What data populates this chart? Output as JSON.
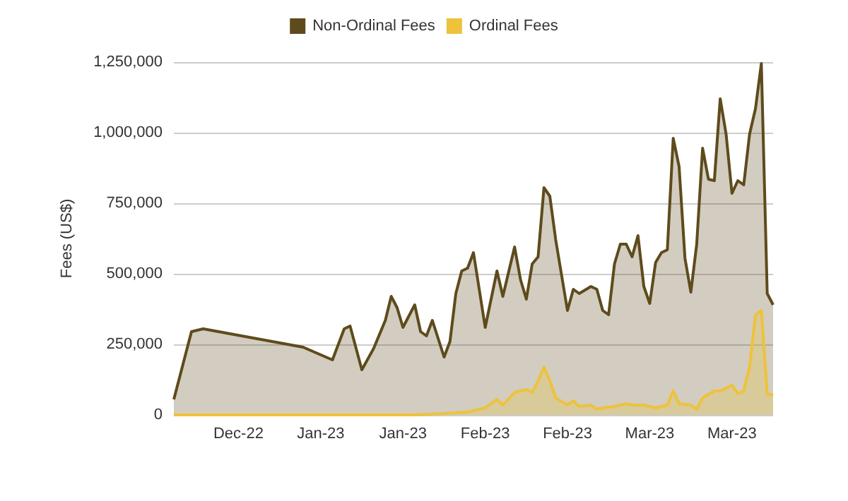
{
  "chart_data": {
    "type": "area",
    "ylabel": "Fees (US$)",
    "legend": "top",
    "grid": "y",
    "marker": "none",
    "ylim": [
      0,
      1250000
    ],
    "yticks": [
      0,
      {
        "value": 250000,
        "label": "250,000"
      },
      {
        "value": 500000,
        "label": "500,000"
      },
      {
        "value": 750000,
        "label": "750,000"
      },
      {
        "value": 1000000,
        "label": "1,000,000"
      },
      {
        "value": 1250000,
        "label": "1,250,000"
      }
    ],
    "xlim": [
      "2022-12-10",
      "2023-03-22"
    ],
    "xticks": [
      {
        "value": "2022-12-21",
        "label": "Dec-22"
      },
      {
        "value": "2023-01-04",
        "label": "Jan-23"
      },
      {
        "value": "2023-01-18",
        "label": "Jan-23"
      },
      {
        "value": "2023-02-01",
        "label": "Feb-23"
      },
      {
        "value": "2023-02-15",
        "label": "Feb-23"
      },
      {
        "value": "2023-03-01",
        "label": "Mar-23"
      },
      {
        "value": "2023-03-15",
        "label": "Mar-23"
      }
    ],
    "series": [
      {
        "name": "Non-Ordinal Fees",
        "color": "#5e4b1c",
        "x": [
          "2022-12-10",
          "2022-12-13",
          "2022-12-15",
          "2023-01-01",
          "2023-01-06",
          "2023-01-08",
          "2023-01-09",
          "2023-01-11",
          "2023-01-13",
          "2023-01-15",
          "2023-01-16",
          "2023-01-17",
          "2023-01-18",
          "2023-01-20",
          "2023-01-21",
          "2023-01-22",
          "2023-01-23",
          "2023-01-25",
          "2023-01-26",
          "2023-01-27",
          "2023-01-28",
          "2023-01-29",
          "2023-01-30",
          "2023-02-01",
          "2023-02-03",
          "2023-02-04",
          "2023-02-06",
          "2023-02-07",
          "2023-02-08",
          "2023-02-09",
          "2023-02-10",
          "2023-02-11",
          "2023-02-12",
          "2023-02-13",
          "2023-02-15",
          "2023-02-16",
          "2023-02-17",
          "2023-02-19",
          "2023-02-20",
          "2023-02-21",
          "2023-02-22",
          "2023-02-23",
          "2023-02-24",
          "2023-02-25",
          "2023-02-26",
          "2023-02-27",
          "2023-02-28",
          "2023-03-01",
          "2023-03-02",
          "2023-03-03",
          "2023-03-04",
          "2023-03-05",
          "2023-03-06",
          "2023-03-07",
          "2023-03-08",
          "2023-03-09",
          "2023-03-10",
          "2023-03-11",
          "2023-03-12",
          "2023-03-13",
          "2023-03-14",
          "2023-03-15",
          "2023-03-16",
          "2023-03-17",
          "2023-03-18",
          "2023-03-19",
          "2023-03-20",
          "2023-03-21",
          "2023-03-22"
        ],
        "values": [
          55000,
          295000,
          305000,
          240000,
          195000,
          305000,
          315000,
          160000,
          235000,
          335000,
          420000,
          380000,
          310000,
          390000,
          295000,
          280000,
          335000,
          205000,
          260000,
          430000,
          510000,
          520000,
          575000,
          310000,
          510000,
          420000,
          595000,
          480000,
          410000,
          535000,
          560000,
          805000,
          775000,
          620000,
          370000,
          445000,
          430000,
          455000,
          445000,
          370000,
          355000,
          535000,
          605000,
          605000,
          560000,
          635000,
          455000,
          395000,
          540000,
          575000,
          585000,
          980000,
          880000,
          555000,
          435000,
          605000,
          945000,
          835000,
          830000,
          1120000,
          995000,
          785000,
          830000,
          815000,
          995000,
          1085000,
          1245000,
          430000,
          390000
        ]
      },
      {
        "name": "Ordinal Fees",
        "color": "#eec23a",
        "x": [
          "2022-12-10",
          "2023-01-20",
          "2023-01-25",
          "2023-01-29",
          "2023-02-01",
          "2023-02-03",
          "2023-02-04",
          "2023-02-06",
          "2023-02-07",
          "2023-02-08",
          "2023-02-09",
          "2023-02-10",
          "2023-02-11",
          "2023-02-12",
          "2023-02-13",
          "2023-02-15",
          "2023-02-16",
          "2023-02-17",
          "2023-02-19",
          "2023-02-20",
          "2023-02-21",
          "2023-02-23",
          "2023-02-25",
          "2023-02-26",
          "2023-02-28",
          "2023-03-02",
          "2023-03-04",
          "2023-03-05",
          "2023-03-06",
          "2023-03-08",
          "2023-03-09",
          "2023-03-10",
          "2023-03-12",
          "2023-03-13",
          "2023-03-15",
          "2023-03-16",
          "2023-03-17",
          "2023-03-18",
          "2023-03-19",
          "2023-03-20",
          "2023-03-21",
          "2023-03-22"
        ],
        "values": [
          0,
          0,
          5000,
          10000,
          25000,
          55000,
          35000,
          80000,
          85000,
          90000,
          80000,
          120000,
          170000,
          120000,
          60000,
          35000,
          50000,
          30000,
          35000,
          20000,
          25000,
          30000,
          40000,
          35000,
          35000,
          25000,
          35000,
          85000,
          40000,
          35000,
          20000,
          60000,
          85000,
          85000,
          105000,
          75000,
          85000,
          170000,
          355000,
          370000,
          75000,
          70000
        ]
      }
    ]
  }
}
